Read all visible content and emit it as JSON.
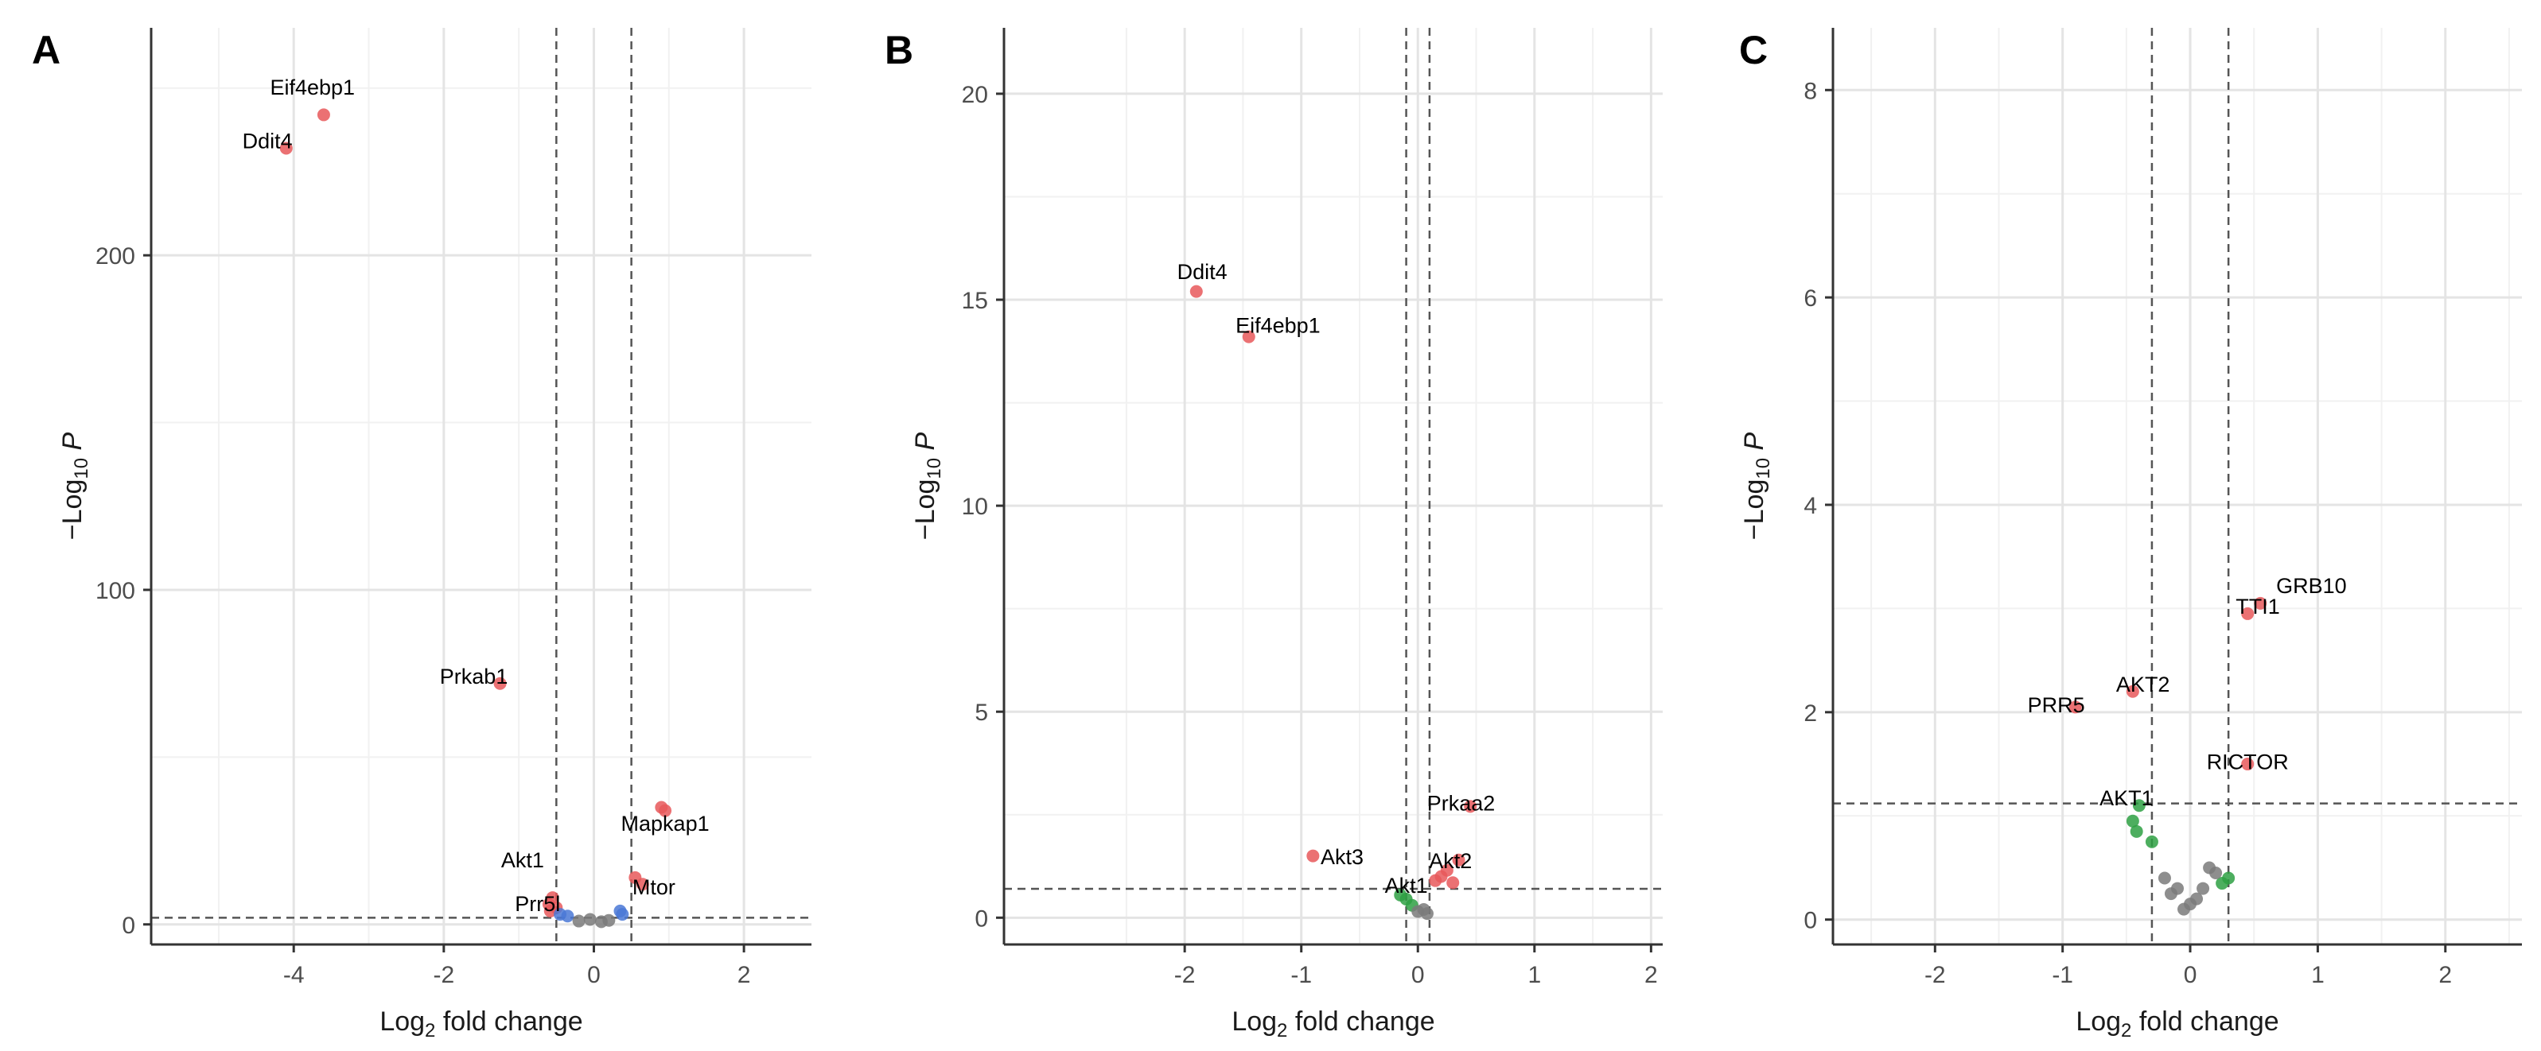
{
  "chart_data": [
    {
      "type": "scatter",
      "panel": "A",
      "xlabel": "Log2 fold change",
      "ylabel": "-Log10 P",
      "xlim": [
        -5.9,
        2.9
      ],
      "ylim": [
        -6,
        268
      ],
      "xticks": [
        -4,
        -2,
        0,
        2
      ],
      "yticks": [
        0,
        100,
        200
      ],
      "fc_cutoff": [
        -0.5,
        0.5
      ],
      "p_cutoff": 2,
      "points": [
        {
          "x": -3.6,
          "y": 242,
          "color": "#e8585a"
        },
        {
          "x": -4.1,
          "y": 232,
          "color": "#e8585a"
        },
        {
          "x": -1.25,
          "y": 72,
          "color": "#e8585a"
        },
        {
          "x": 0.9,
          "y": 35,
          "color": "#e8585a"
        },
        {
          "x": 0.95,
          "y": 34,
          "color": "#e8585a"
        },
        {
          "x": 0.55,
          "y": 14,
          "color": "#e8585a"
        },
        {
          "x": 0.65,
          "y": 12,
          "color": "#e8585a"
        },
        {
          "x": -0.55,
          "y": 8,
          "color": "#e8585a"
        },
        {
          "x": -0.6,
          "y": 6,
          "color": "#e8585a"
        },
        {
          "x": -0.5,
          "y": 5,
          "color": "#e8585a"
        },
        {
          "x": -0.58,
          "y": 4,
          "color": "#e8585a"
        },
        {
          "x": -0.45,
          "y": 3,
          "color": "#4a78d6"
        },
        {
          "x": 0.35,
          "y": 4,
          "color": "#4a78d6"
        },
        {
          "x": 0.38,
          "y": 3,
          "color": "#4a78d6"
        },
        {
          "x": -0.35,
          "y": 2.5,
          "color": "#4a78d6"
        },
        {
          "x": -0.2,
          "y": 1,
          "color": "#7a7a7a"
        },
        {
          "x": -0.05,
          "y": 1.5,
          "color": "#7a7a7a"
        },
        {
          "x": 0.1,
          "y": 0.8,
          "color": "#7a7a7a"
        },
        {
          "x": 0.2,
          "y": 1.2,
          "color": "#7a7a7a"
        }
      ],
      "labels": [
        {
          "text": "Eif4ebp1",
          "x": -3.75,
          "y": 248
        },
        {
          "text": "Ddit4",
          "x": -4.35,
          "y": 232
        },
        {
          "text": "Prkab1",
          "x": -1.6,
          "y": 72
        },
        {
          "text": "Mapkap1",
          "x": 0.95,
          "y": 28
        },
        {
          "text": "Akt1",
          "x": -0.95,
          "y": 17
        },
        {
          "text": "Mtor",
          "x": 0.8,
          "y": 9
        },
        {
          "text": "Prr5l",
          "x": -0.75,
          "y": 4
        }
      ]
    },
    {
      "type": "scatter",
      "panel": "B",
      "xlabel": "Log2 fold change",
      "ylabel": "-Log10 P",
      "xlim": [
        -3.55,
        2.1
      ],
      "ylim": [
        -0.65,
        21.6
      ],
      "xticks": [
        -2,
        -1,
        0,
        1,
        2
      ],
      "yticks": [
        0,
        5,
        10,
        15,
        20
      ],
      "fc_cutoff": [
        -0.1,
        0.1
      ],
      "p_cutoff": 0.7,
      "points": [
        {
          "x": -1.9,
          "y": 15.2,
          "color": "#e8585a"
        },
        {
          "x": -1.45,
          "y": 14.1,
          "color": "#e8585a"
        },
        {
          "x": 0.45,
          "y": 2.7,
          "color": "#e8585a"
        },
        {
          "x": -0.9,
          "y": 1.5,
          "color": "#e8585a"
        },
        {
          "x": 0.35,
          "y": 1.4,
          "color": "#e8585a"
        },
        {
          "x": 0.25,
          "y": 1.15,
          "color": "#e8585a"
        },
        {
          "x": 0.15,
          "y": 0.9,
          "color": "#e8585a"
        },
        {
          "x": 0.3,
          "y": 0.85,
          "color": "#e8585a"
        },
        {
          "x": 0.2,
          "y": 1.0,
          "color": "#e8585a"
        },
        {
          "x": -0.15,
          "y": 0.55,
          "color": "#2ea043"
        },
        {
          "x": -0.1,
          "y": 0.45,
          "color": "#2ea043"
        },
        {
          "x": -0.05,
          "y": 0.3,
          "color": "#2ea043"
        },
        {
          "x": 0.0,
          "y": 0.15,
          "color": "#7a7a7a"
        },
        {
          "x": 0.05,
          "y": 0.2,
          "color": "#7a7a7a"
        },
        {
          "x": 0.08,
          "y": 0.1,
          "color": "#7a7a7a"
        }
      ],
      "labels": [
        {
          "text": "Ddit4",
          "x": -1.85,
          "y": 15.5
        },
        {
          "text": "Eif4ebp1",
          "x": -1.2,
          "y": 14.2
        },
        {
          "text": "Prkaa2",
          "x": 0.37,
          "y": 2.6
        },
        {
          "text": "Akt3",
          "x": -0.65,
          "y": 1.3
        },
        {
          "text": "Akt2",
          "x": 0.28,
          "y": 1.2
        },
        {
          "text": "Akt1",
          "x": -0.1,
          "y": 0.6
        }
      ]
    },
    {
      "type": "scatter",
      "panel": "C",
      "xlabel": "Log2 fold change",
      "ylabel": "-Log10 P",
      "xlim": [
        -2.8,
        2.6
      ],
      "ylim": [
        -0.24,
        8.6
      ],
      "xticks": [
        -2,
        -1,
        0,
        1,
        2
      ],
      "yticks": [
        0,
        2,
        4,
        6,
        8
      ],
      "fc_cutoff": [
        -0.3,
        0.3
      ],
      "p_cutoff": 1.12,
      "points": [
        {
          "x": 0.45,
          "y": 2.95,
          "color": "#e8585a"
        },
        {
          "x": 0.55,
          "y": 3.05,
          "color": "#e8585a"
        },
        {
          "x": -0.45,
          "y": 2.2,
          "color": "#e8585a"
        },
        {
          "x": -0.9,
          "y": 2.05,
          "color": "#e8585a"
        },
        {
          "x": 0.45,
          "y": 1.5,
          "color": "#e8585a"
        },
        {
          "x": -0.45,
          "y": 0.95,
          "color": "#2ea043"
        },
        {
          "x": -0.42,
          "y": 0.85,
          "color": "#2ea043"
        },
        {
          "x": -0.4,
          "y": 1.1,
          "color": "#2ea043"
        },
        {
          "x": -0.3,
          "y": 0.75,
          "color": "#2ea043"
        },
        {
          "x": 0.3,
          "y": 0.4,
          "color": "#2ea043"
        },
        {
          "x": 0.25,
          "y": 0.35,
          "color": "#2ea043"
        },
        {
          "x": -0.2,
          "y": 0.4,
          "color": "#7a7a7a"
        },
        {
          "x": -0.1,
          "y": 0.3,
          "color": "#7a7a7a"
        },
        {
          "x": -0.15,
          "y": 0.25,
          "color": "#7a7a7a"
        },
        {
          "x": 0.0,
          "y": 0.15,
          "color": "#7a7a7a"
        },
        {
          "x": 0.05,
          "y": 0.2,
          "color": "#7a7a7a"
        },
        {
          "x": 0.1,
          "y": 0.3,
          "color": "#7a7a7a"
        },
        {
          "x": 0.15,
          "y": 0.5,
          "color": "#7a7a7a"
        },
        {
          "x": 0.2,
          "y": 0.45,
          "color": "#7a7a7a"
        },
        {
          "x": -0.05,
          "y": 0.1,
          "color": "#7a7a7a"
        }
      ],
      "labels": [
        {
          "text": "GRB10",
          "x": 0.95,
          "y": 3.15
        },
        {
          "text": "TTI1",
          "x": 0.53,
          "y": 2.95
        },
        {
          "text": "AKT2",
          "x": -0.37,
          "y": 2.2
        },
        {
          "text": "PRR5",
          "x": -1.05,
          "y": 2.0
        },
        {
          "text": "RICTOR",
          "x": 0.45,
          "y": 1.45
        },
        {
          "text": "AKT1",
          "x": -0.5,
          "y": 1.1
        }
      ]
    }
  ],
  "colors": {
    "grid_major": "#e4e4e4",
    "grid_minor": "#f1f1f1",
    "axis": "#333333",
    "cutoff": "#555555"
  }
}
